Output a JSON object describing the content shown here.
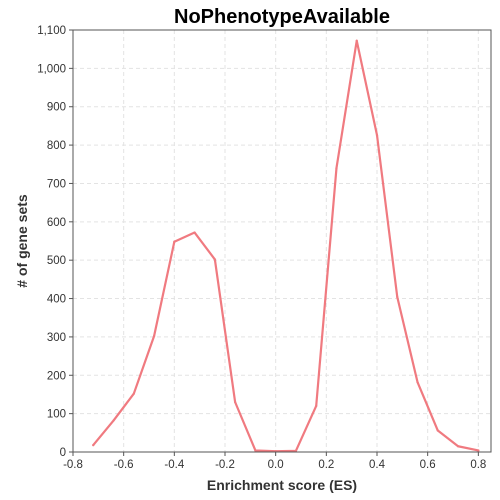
{
  "chart_data": {
    "type": "line",
    "title": "NoPhenotypeAvailable",
    "xlabel": "Enrichment score (ES)",
    "ylabel": "# of gene sets",
    "xlim": [
      -0.8,
      0.85
    ],
    "ylim": [
      0,
      1100
    ],
    "x_ticks": [
      -0.8,
      -0.6,
      -0.4,
      -0.2,
      0.0,
      0.2,
      0.4,
      0.6,
      0.8
    ],
    "x_tick_labels": [
      "-0.8",
      "-0.6",
      "-0.4",
      "-0.2",
      "0.0",
      "0.2",
      "0.4",
      "0.6",
      "0.8"
    ],
    "y_ticks": [
      0,
      100,
      200,
      300,
      400,
      500,
      600,
      700,
      800,
      900,
      1000,
      1100
    ],
    "y_tick_labels": [
      "0",
      "100",
      "200",
      "300",
      "400",
      "500",
      "600",
      "700",
      "800",
      "900",
      "1,000",
      "1,100"
    ],
    "grid": true,
    "legend": "none",
    "series": [
      {
        "color": "#f07a80",
        "x": [
          -0.72,
          -0.64,
          -0.56,
          -0.48,
          -0.4,
          -0.32,
          -0.24,
          -0.16,
          -0.08,
          0.0,
          0.08,
          0.16,
          0.24,
          0.32,
          0.4,
          0.48,
          0.56,
          0.64,
          0.72,
          0.8
        ],
        "y": [
          18,
          82,
          152,
          302,
          548,
          572,
          502,
          130,
          4,
          2,
          3,
          120,
          740,
          1072,
          826,
          404,
          182,
          56,
          15,
          4
        ]
      }
    ]
  }
}
